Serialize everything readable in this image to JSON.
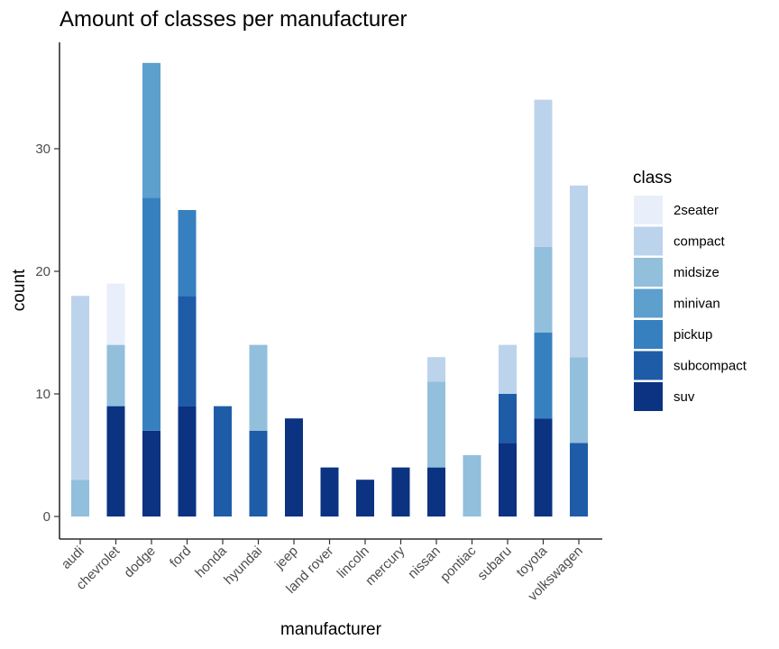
{
  "chart_data": {
    "type": "bar",
    "stacked": true,
    "title": "Amount of classes per manufacturer",
    "xlabel": "manufacturer",
    "ylabel": "count",
    "ylim": [
      0,
      38
    ],
    "yticks": [
      0,
      10,
      20,
      30
    ],
    "categories": [
      "audi",
      "chevrolet",
      "dodge",
      "ford",
      "honda",
      "hyundai",
      "jeep",
      "land rover",
      "lincoln",
      "mercury",
      "nissan",
      "pontiac",
      "subaru",
      "toyota",
      "volkswagen"
    ],
    "legend": {
      "title": "class",
      "placement": "right"
    },
    "series": [
      {
        "name": "2seater",
        "color": "#e8effb",
        "values": [
          0,
          5,
          0,
          0,
          0,
          0,
          0,
          0,
          0,
          0,
          0,
          0,
          0,
          0,
          0
        ]
      },
      {
        "name": "compact",
        "color": "#bcd3ec",
        "values": [
          15,
          0,
          0,
          0,
          0,
          0,
          0,
          0,
          0,
          0,
          2,
          0,
          4,
          12,
          14
        ]
      },
      {
        "name": "midsize",
        "color": "#92bfdc",
        "values": [
          3,
          5,
          0,
          0,
          0,
          7,
          0,
          0,
          0,
          0,
          7,
          5,
          0,
          7,
          7
        ]
      },
      {
        "name": "minivan",
        "color": "#5d9fcd",
        "values": [
          0,
          0,
          11,
          0,
          0,
          0,
          0,
          0,
          0,
          0,
          0,
          0,
          0,
          0,
          0
        ]
      },
      {
        "name": "pickup",
        "color": "#3780bf",
        "values": [
          0,
          0,
          19,
          7,
          0,
          0,
          0,
          0,
          0,
          0,
          0,
          0,
          0,
          7,
          0
        ]
      },
      {
        "name": "subcompact",
        "color": "#1e5ca8",
        "values": [
          0,
          0,
          0,
          9,
          9,
          7,
          0,
          0,
          0,
          0,
          0,
          0,
          4,
          0,
          6
        ]
      },
      {
        "name": "suv",
        "color": "#0b3382",
        "values": [
          0,
          9,
          7,
          9,
          0,
          0,
          8,
          4,
          3,
          4,
          4,
          0,
          6,
          8,
          0
        ]
      }
    ],
    "grid": false
  }
}
